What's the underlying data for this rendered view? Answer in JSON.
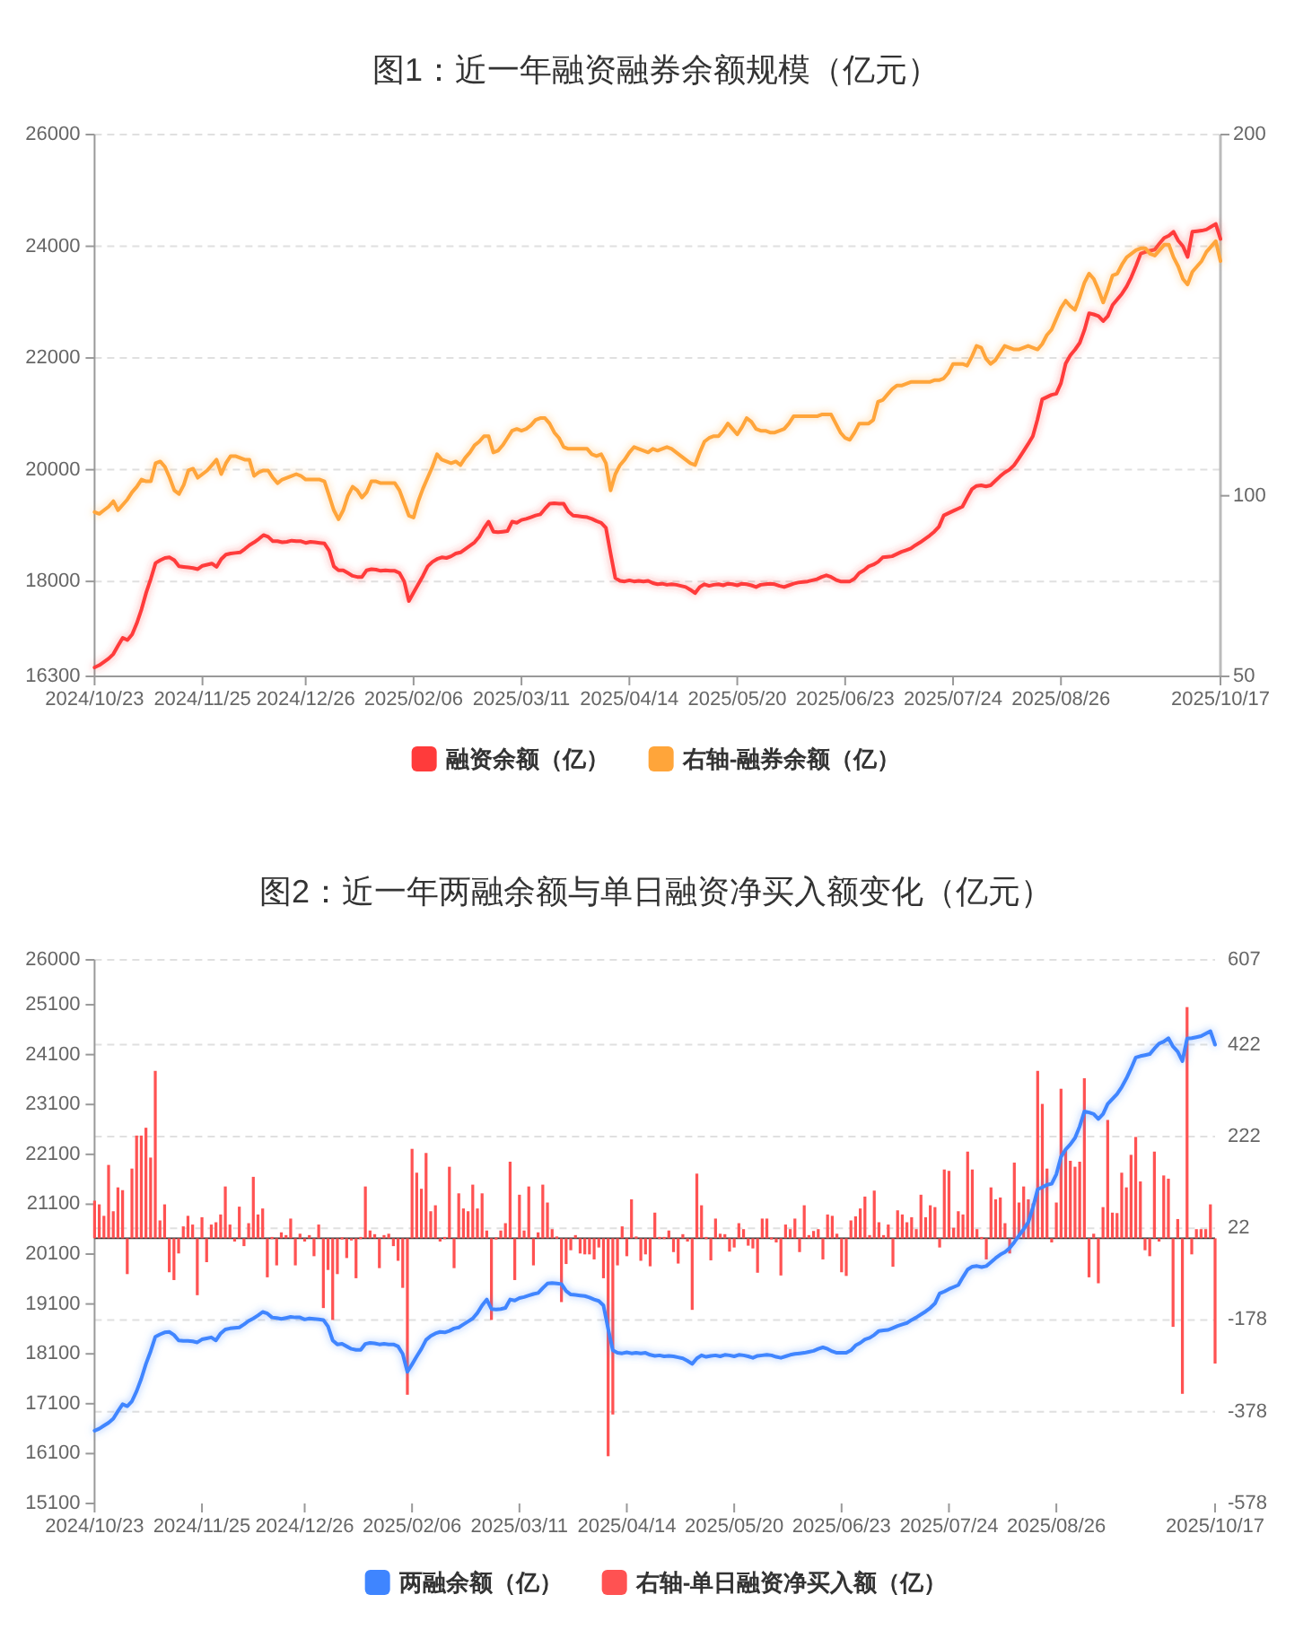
{
  "chart_data": [
    {
      "type": "line",
      "title": "图1：近一年融资融券余额规模（亿元）",
      "categories": [
        "2024/10/23",
        null,
        null,
        null,
        null,
        null,
        null,
        null,
        null,
        null,
        null,
        null,
        null,
        null,
        null,
        null,
        null,
        null,
        null,
        null,
        null,
        null,
        null,
        "2024/11/25",
        null,
        null,
        null,
        null,
        null,
        null,
        null,
        null,
        null,
        null,
        null,
        null,
        null,
        null,
        null,
        null,
        null,
        null,
        null,
        null,
        null,
        "2024/12/26",
        null,
        null,
        null,
        null,
        null,
        null,
        null,
        null,
        null,
        null,
        null,
        null,
        null,
        null,
        null,
        null,
        null,
        null,
        null,
        null,
        null,
        null,
        "2025/02/06",
        null,
        null,
        null,
        null,
        null,
        null,
        null,
        null,
        null,
        null,
        null,
        null,
        null,
        null,
        null,
        null,
        null,
        null,
        null,
        null,
        null,
        null,
        "2025/03/11",
        null,
        null,
        null,
        null,
        null,
        null,
        null,
        null,
        null,
        null,
        null,
        null,
        null,
        null,
        null,
        null,
        null,
        null,
        null,
        null,
        null,
        null,
        "2025/04/14",
        null,
        null,
        null,
        null,
        null,
        null,
        null,
        null,
        null,
        null,
        null,
        null,
        null,
        null,
        null,
        null,
        null,
        null,
        null,
        null,
        null,
        null,
        "2025/05/20",
        null,
        null,
        null,
        null,
        null,
        null,
        null,
        null,
        null,
        null,
        null,
        null,
        null,
        null,
        null,
        null,
        null,
        null,
        null,
        null,
        null,
        null,
        "2025/06/23",
        null,
        null,
        null,
        null,
        null,
        null,
        null,
        null,
        null,
        null,
        null,
        null,
        null,
        null,
        null,
        null,
        null,
        null,
        null,
        null,
        null,
        null,
        "2025/07/24",
        null,
        null,
        null,
        null,
        null,
        null,
        null,
        null,
        null,
        null,
        null,
        null,
        null,
        null,
        null,
        null,
        null,
        null,
        null,
        null,
        null,
        null,
        "2025/08/26",
        null,
        null,
        null,
        null,
        null,
        null,
        null,
        null,
        null,
        null,
        null,
        null,
        null,
        null,
        null,
        null,
        null,
        null,
        null,
        null,
        null,
        null,
        null,
        null,
        null,
        null,
        null,
        null,
        null,
        null,
        null,
        null,
        null,
        "2025/10/17"
      ],
      "ylim": [
        16300,
        26000
      ],
      "yticks": [
        16300,
        18000,
        20000,
        22000,
        24000,
        26000
      ],
      "y2lim": [
        50,
        200
      ],
      "y2ticks": [
        50,
        100,
        200
      ],
      "grid": "y",
      "legend": "bottom",
      "series": [
        {
          "name": "融资余额（亿）",
          "color": "#ff3b3b",
          "values": [
            16460,
            16500,
            16560,
            16620,
            16700,
            16850,
            16990,
            16950,
            17050,
            17250,
            17500,
            17800,
            18050,
            18330,
            18380,
            18420,
            18430,
            18380,
            18270,
            18260,
            18250,
            18240,
            18220,
            18280,
            18300,
            18320,
            18260,
            18400,
            18480,
            18500,
            18510,
            18520,
            18580,
            18650,
            18700,
            18760,
            18830,
            18800,
            18720,
            18720,
            18700,
            18710,
            18730,
            18720,
            18720,
            18690,
            18710,
            18700,
            18690,
            18680,
            18550,
            18270,
            18200,
            18200,
            18150,
            18100,
            18080,
            18080,
            18200,
            18220,
            18210,
            18190,
            18200,
            18190,
            18190,
            18150,
            18000,
            17650,
            17800,
            17950,
            18100,
            18270,
            18350,
            18400,
            18430,
            18420,
            18450,
            18500,
            18520,
            18580,
            18640,
            18700,
            18800,
            18950,
            19070,
            18890,
            18880,
            18890,
            18900,
            19070,
            19050,
            19100,
            19120,
            19150,
            19180,
            19200,
            19300,
            19390,
            19400,
            19390,
            19390,
            19250,
            19180,
            19170,
            19160,
            19150,
            19120,
            19080,
            19050,
            18960,
            18500,
            18060,
            18010,
            18000,
            18020,
            18000,
            18010,
            18000,
            18010,
            17970,
            17950,
            17960,
            17940,
            17950,
            17940,
            17920,
            17900,
            17850,
            17790,
            17900,
            17950,
            17920,
            17940,
            17950,
            17930,
            17960,
            17950,
            17930,
            17960,
            17950,
            17930,
            17900,
            17940,
            17950,
            17960,
            17950,
            17920,
            17900,
            17930,
            17960,
            17980,
            17990,
            18000,
            18020,
            18040,
            18080,
            18110,
            18080,
            18030,
            18000,
            18000,
            18000,
            18050,
            18150,
            18200,
            18270,
            18300,
            18350,
            18430,
            18440,
            18450,
            18490,
            18530,
            18560,
            18590,
            18650,
            18700,
            18760,
            18820,
            18890,
            18980,
            19180,
            19220,
            19260,
            19300,
            19340,
            19500,
            19650,
            19710,
            19720,
            19700,
            19720,
            19800,
            19880,
            19950,
            20000,
            20080,
            20200,
            20330,
            20460,
            20600,
            20900,
            21260,
            21300,
            21340,
            21360,
            21550,
            21900,
            22050,
            22150,
            22270,
            22500,
            22800,
            22780,
            22750,
            22660,
            22750,
            22950,
            23050,
            23150,
            23280,
            23450,
            23650,
            23870,
            23900,
            23920,
            23940,
            24050,
            24150,
            24190,
            24260,
            24100,
            24000,
            23810,
            24260,
            24270,
            24280,
            24300,
            24350,
            24400,
            24130
          ]
        },
        {
          "name": "右轴-融券余额（亿）",
          "color": "#ffa53a",
          "axis": "y2",
          "values": [
            95.5,
            95,
            96,
            97,
            98.5,
            96,
            97.5,
            99,
            101,
            102.5,
            104.5,
            104,
            104,
            109,
            109.5,
            108,
            105,
            101.5,
            100.5,
            103,
            107,
            107.5,
            105,
            106,
            107,
            108.5,
            110,
            106,
            109,
            111,
            111,
            110.5,
            110,
            110,
            105.5,
            106.5,
            107,
            107,
            105,
            103.5,
            104.5,
            105,
            105.5,
            106,
            105.5,
            104.5,
            104.5,
            104.5,
            104.5,
            104,
            100,
            96,
            93.5,
            96,
            100,
            102.5,
            101.5,
            99.5,
            101,
            104,
            104,
            103.5,
            103.5,
            103.5,
            103.5,
            101.5,
            98,
            94.5,
            94,
            98.5,
            102,
            105,
            108,
            111.5,
            110,
            109.5,
            109,
            109.5,
            108.5,
            110.5,
            112,
            114,
            115,
            116.5,
            116.5,
            112,
            112.5,
            114,
            116,
            118,
            118.5,
            118,
            118.5,
            119.5,
            121,
            121.5,
            121.5,
            120,
            117.5,
            116,
            113.5,
            113,
            113,
            113,
            113,
            113,
            111.5,
            111,
            111.5,
            109,
            101.5,
            106,
            108.5,
            110,
            112,
            113.5,
            113,
            112.5,
            112,
            113,
            112.5,
            113,
            113.5,
            113,
            112,
            111,
            110,
            109,
            108.5,
            112,
            115,
            116,
            116.5,
            116.5,
            118,
            120,
            118.5,
            117,
            119,
            121.5,
            120.5,
            118.5,
            118,
            118,
            117.5,
            117.5,
            118,
            118.5,
            120,
            122,
            122,
            122,
            122,
            122,
            122,
            122.5,
            122.5,
            122.5,
            120,
            117.5,
            116,
            115.5,
            117.5,
            120,
            120,
            120,
            121,
            126,
            126.5,
            128,
            129.5,
            130.5,
            130.5,
            131,
            131.5,
            131.5,
            131.5,
            131.5,
            131.5,
            132,
            132,
            132.5,
            134,
            136.5,
            136.5,
            136.5,
            136,
            138.5,
            141.5,
            141,
            138,
            136.5,
            137.5,
            139.5,
            141.5,
            141,
            140.5,
            140.5,
            141,
            141.5,
            141,
            140.5,
            142,
            144.5,
            146,
            149,
            152,
            154,
            152.5,
            151.5,
            155,
            159,
            161.5,
            160,
            157,
            153.5,
            157,
            161,
            161.5,
            164,
            166,
            167,
            168,
            168.5,
            168.5,
            167,
            166.5,
            168,
            169.5,
            169.5,
            166,
            163.5,
            160,
            158.5,
            162,
            163.5,
            165,
            167.5,
            169,
            170.5,
            165
          ]
        }
      ]
    },
    {
      "type": "bar",
      "title": "图2：近一年两融余额与单日融资净买入额变化（亿元）",
      "categories": [
        "2024/10/23",
        null,
        null,
        null,
        null,
        null,
        null,
        null,
        null,
        null,
        null,
        null,
        null,
        null,
        null,
        null,
        null,
        null,
        null,
        null,
        null,
        null,
        null,
        "2024/11/25",
        null,
        null,
        null,
        null,
        null,
        null,
        null,
        null,
        null,
        null,
        null,
        null,
        null,
        null,
        null,
        null,
        null,
        null,
        null,
        null,
        null,
        "2024/12/26",
        null,
        null,
        null,
        null,
        null,
        null,
        null,
        null,
        null,
        null,
        null,
        null,
        null,
        null,
        null,
        null,
        null,
        null,
        null,
        null,
        null,
        null,
        "2025/02/06",
        null,
        null,
        null,
        null,
        null,
        null,
        null,
        null,
        null,
        null,
        null,
        null,
        null,
        null,
        null,
        null,
        null,
        null,
        null,
        null,
        null,
        null,
        "2025/03/11",
        null,
        null,
        null,
        null,
        null,
        null,
        null,
        null,
        null,
        null,
        null,
        null,
        null,
        null,
        null,
        null,
        null,
        null,
        null,
        null,
        null,
        null,
        "2025/04/14",
        null,
        null,
        null,
        null,
        null,
        null,
        null,
        null,
        null,
        null,
        null,
        null,
        null,
        null,
        null,
        null,
        null,
        null,
        null,
        null,
        null,
        null,
        "2025/05/20",
        null,
        null,
        null,
        null,
        null,
        null,
        null,
        null,
        null,
        null,
        null,
        null,
        null,
        null,
        null,
        null,
        null,
        null,
        null,
        null,
        null,
        null,
        "2025/06/23",
        null,
        null,
        null,
        null,
        null,
        null,
        null,
        null,
        null,
        null,
        null,
        null,
        null,
        null,
        null,
        null,
        null,
        null,
        null,
        null,
        null,
        null,
        "2025/07/24",
        null,
        null,
        null,
        null,
        null,
        null,
        null,
        null,
        null,
        null,
        null,
        null,
        null,
        null,
        null,
        null,
        null,
        null,
        null,
        null,
        null,
        null,
        "2025/08/26",
        null,
        null,
        null,
        null,
        null,
        null,
        null,
        null,
        null,
        null,
        null,
        null,
        null,
        null,
        null,
        null,
        null,
        null,
        null,
        null,
        null,
        null,
        null,
        null,
        null,
        null,
        null,
        null,
        null,
        null,
        null,
        null,
        null,
        "2025/10/17"
      ],
      "ylim": [
        15100,
        26000
      ],
      "yticks": [
        15100,
        16100,
        17100,
        18100,
        19100,
        20100,
        21100,
        22100,
        23100,
        24100,
        25100,
        26000
      ],
      "y2lim": [
        -578,
        607
      ],
      "y2ticks": [
        -578,
        -378,
        -178,
        22,
        222,
        422,
        607
      ],
      "grid": "y2",
      "legend": "bottom",
      "series": [
        {
          "name": "两融余额（亿）",
          "color": "#3f85ff",
          "type": "line",
          "values": [
            16560,
            16600,
            16660,
            16720,
            16800,
            16950,
            17090,
            17050,
            17150,
            17350,
            17600,
            17900,
            18150,
            18440,
            18490,
            18530,
            18540,
            18480,
            18370,
            18360,
            18360,
            18350,
            18330,
            18390,
            18410,
            18430,
            18370,
            18510,
            18590,
            18610,
            18620,
            18630,
            18690,
            18760,
            18810,
            18870,
            18940,
            18910,
            18830,
            18820,
            18800,
            18820,
            18840,
            18830,
            18830,
            18790,
            18810,
            18800,
            18790,
            18780,
            18650,
            18370,
            18290,
            18300,
            18250,
            18200,
            18180,
            18180,
            18300,
            18320,
            18310,
            18290,
            18300,
            18290,
            18290,
            18250,
            18100,
            17740,
            17890,
            18050,
            18200,
            18380,
            18460,
            18510,
            18540,
            18530,
            18560,
            18610,
            18630,
            18690,
            18750,
            18810,
            18920,
            19070,
            19190,
            19000,
            18990,
            19000,
            19020,
            19190,
            19170,
            19220,
            19240,
            19270,
            19300,
            19320,
            19420,
            19510,
            19520,
            19510,
            19500,
            19360,
            19290,
            19280,
            19270,
            19260,
            19230,
            19190,
            19160,
            19070,
            18600,
            18170,
            18120,
            18110,
            18130,
            18110,
            18120,
            18110,
            18120,
            18080,
            18060,
            18070,
            18050,
            18060,
            18050,
            18030,
            18010,
            17960,
            17900,
            18010,
            18070,
            18040,
            18060,
            18070,
            18050,
            18080,
            18070,
            18050,
            18080,
            18070,
            18050,
            18020,
            18060,
            18070,
            18080,
            18070,
            18040,
            18020,
            18050,
            18080,
            18100,
            18110,
            18120,
            18140,
            18160,
            18200,
            18230,
            18200,
            18150,
            18120,
            18120,
            18120,
            18170,
            18270,
            18320,
            18390,
            18420,
            18480,
            18560,
            18570,
            18580,
            18620,
            18660,
            18690,
            18720,
            18780,
            18830,
            18890,
            18950,
            19020,
            19110,
            19310,
            19350,
            19400,
            19440,
            19480,
            19640,
            19790,
            19850,
            19860,
            19840,
            19860,
            19940,
            20020,
            20090,
            20140,
            20220,
            20340,
            20470,
            20600,
            20740,
            21040,
            21400,
            21440,
            21490,
            21510,
            21700,
            22050,
            22200,
            22300,
            22430,
            22660,
            22960,
            22940,
            22910,
            22810,
            22910,
            23110,
            23210,
            23310,
            23450,
            23620,
            23820,
            24040,
            24070,
            24090,
            24110,
            24220,
            24320,
            24360,
            24430,
            24260,
            24160,
            23970,
            24420,
            24430,
            24450,
            24470,
            24520,
            24570,
            24300
          ]
        },
        {
          "name": "右轴-单日融资净买入额（亿）",
          "color": "#ff5252",
          "axis": "y2",
          "values": [
            82,
            74,
            49,
            160,
            59,
            111,
            105,
            -78,
            152,
            224,
            224,
            241,
            176,
            365,
            39,
            74,
            -74,
            -91,
            -33,
            26,
            49,
            30,
            -124,
            46,
            -52,
            30,
            35,
            52,
            113,
            30,
            -7,
            69,
            -17,
            33,
            134,
            52,
            65,
            -85,
            3,
            -59,
            13,
            7,
            43,
            -59,
            10,
            -7,
            7,
            -39,
            30,
            -152,
            -69,
            -178,
            -78,
            2,
            -43,
            -2,
            -87,
            3,
            113,
            17,
            9,
            -65,
            7,
            10,
            -17,
            -49,
            -108,
            -341,
            195,
            143,
            108,
            186,
            59,
            72,
            -7,
            3,
            156,
            -65,
            98,
            65,
            59,
            117,
            65,
            98,
            17,
            -178,
            2,
            17,
            33,
            167,
            -91,
            95,
            17,
            113,
            -59,
            13,
            117,
            78,
            20,
            4,
            -139,
            -56,
            -26,
            7,
            -33,
            -35,
            -35,
            -46,
            -20,
            -87,
            -475,
            -384,
            -59,
            26,
            -39,
            85,
            4,
            -49,
            -35,
            -61,
            56,
            3,
            3,
            17,
            -30,
            -55,
            9,
            -7,
            -156,
            141,
            72,
            3,
            -48,
            43,
            10,
            9,
            -29,
            -20,
            33,
            20,
            -16,
            -22,
            -75,
            43,
            43,
            2,
            -9,
            -81,
            30,
            20,
            43,
            -30,
            72,
            7,
            16,
            20,
            -46,
            52,
            49,
            10,
            -74,
            -82,
            39,
            48,
            65,
            91,
            7,
            104,
            35,
            7,
            30,
            -62,
            61,
            52,
            35,
            46,
            20,
            95,
            46,
            72,
            68,
            -20,
            150,
            147,
            23,
            59,
            52,
            189,
            150,
            20,
            3,
            -46,
            111,
            85,
            89,
            33,
            -33,
            165,
            78,
            113,
            85,
            76,
            365,
            293,
            152,
            -9,
            78,
            326,
            195,
            169,
            156,
            167,
            349,
            -85,
            10,
            -98,
            68,
            258,
            56,
            55,
            143,
            111,
            182,
            221,
            124,
            -26,
            -39,
            189,
            -7,
            137,
            130,
            -193,
            42,
            -339,
            504,
            -35,
            20,
            20,
            20,
            74,
            -273
          ]
        }
      ]
    }
  ]
}
